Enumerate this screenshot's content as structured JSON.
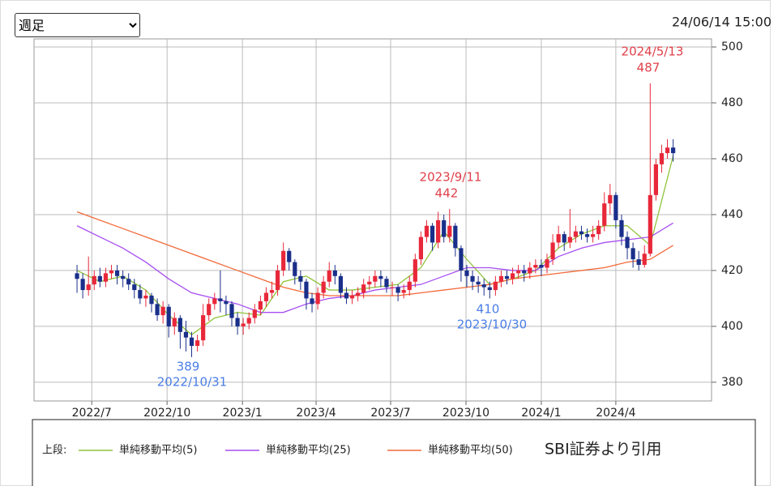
{
  "chart_data": {
    "type": "candlestick",
    "period": "週足",
    "timestamp": "24/06/14 15:00",
    "x": [
      0,
      1,
      2,
      3,
      4,
      5,
      6,
      7,
      8,
      9,
      10,
      11,
      12,
      13,
      14,
      15,
      16,
      17,
      18,
      19,
      20,
      21,
      22,
      23,
      24,
      25,
      26,
      27,
      28,
      29,
      30,
      31,
      32,
      33,
      34,
      35,
      36,
      37,
      38,
      39,
      40,
      41,
      42,
      43,
      44,
      45,
      46,
      47,
      48,
      49,
      50,
      51,
      52,
      53,
      54,
      55,
      56,
      57,
      58,
      59,
      60,
      61,
      62,
      63,
      64,
      65,
      66,
      67,
      68,
      69,
      70,
      71,
      72,
      73,
      74,
      75,
      76,
      77,
      78,
      79,
      80,
      81,
      82,
      83,
      84,
      85,
      86,
      87,
      88,
      89,
      90,
      91,
      92,
      93,
      94,
      95,
      96,
      97,
      98,
      99,
      100,
      101,
      102,
      103,
      104
    ],
    "open": [
      419,
      417,
      413,
      415,
      418,
      416,
      419,
      420,
      418,
      417,
      415,
      413,
      410,
      411,
      408,
      404,
      407,
      400,
      403,
      398,
      396,
      393,
      395,
      404,
      408,
      410,
      409,
      408,
      403,
      400,
      401,
      403,
      406,
      409,
      412,
      413,
      420,
      427,
      423,
      418,
      416,
      410,
      408,
      412,
      416,
      420,
      418,
      412,
      410,
      411,
      412,
      415,
      416,
      418,
      417,
      414,
      414,
      412,
      413,
      416,
      424,
      432,
      436,
      430,
      438,
      432,
      436,
      428,
      420,
      418,
      416,
      415,
      414,
      413,
      416,
      418,
      417,
      419,
      420,
      419,
      421,
      422,
      421,
      424,
      430,
      433,
      430,
      432,
      434,
      433,
      432,
      433,
      436,
      444,
      447,
      438,
      432,
      428,
      424,
      422,
      426,
      447,
      458,
      462,
      464
    ],
    "high": [
      422,
      419,
      425,
      420,
      421,
      421,
      422,
      422,
      420,
      419,
      417,
      415,
      413,
      412,
      410,
      409,
      408,
      405,
      404,
      402,
      398,
      397,
      408,
      410,
      412,
      420,
      411,
      409,
      405,
      403,
      405,
      408,
      411,
      414,
      416,
      422,
      430,
      428,
      424,
      420,
      417,
      412,
      414,
      418,
      423,
      422,
      419,
      414,
      413,
      414,
      417,
      418,
      420,
      420,
      418,
      416,
      415,
      415,
      418,
      426,
      434,
      438,
      437,
      441,
      440,
      442,
      437,
      429,
      422,
      420,
      418,
      417,
      416,
      418,
      420,
      420,
      421,
      422,
      422,
      423,
      424,
      424,
      426,
      433,
      436,
      434,
      442,
      436,
      436,
      435,
      436,
      438,
      448,
      451,
      448,
      440,
      434,
      430,
      427,
      429,
      487,
      460,
      465,
      467,
      467
    ],
    "low": [
      412,
      410,
      411,
      413,
      414,
      414,
      417,
      415,
      414,
      413,
      410,
      408,
      407,
      405,
      402,
      401,
      396,
      397,
      392,
      391,
      389,
      391,
      393,
      402,
      406,
      405,
      404,
      400,
      397,
      397,
      399,
      401,
      404,
      407,
      410,
      411,
      418,
      420,
      415,
      413,
      406,
      405,
      406,
      410,
      414,
      415,
      410,
      408,
      408,
      409,
      410,
      413,
      414,
      414,
      412,
      411,
      409,
      410,
      411,
      414,
      422,
      430,
      427,
      428,
      430,
      430,
      425,
      416,
      414,
      413,
      412,
      411,
      410,
      411,
      414,
      415,
      415,
      417,
      416,
      417,
      419,
      418,
      419,
      422,
      428,
      427,
      428,
      430,
      431,
      430,
      430,
      431,
      434,
      440,
      435,
      429,
      424,
      421,
      420,
      421,
      425,
      445,
      455,
      460,
      459
    ],
    "close": [
      417,
      413,
      415,
      418,
      416,
      419,
      420,
      418,
      417,
      415,
      413,
      410,
      411,
      408,
      404,
      407,
      400,
      403,
      398,
      396,
      393,
      395,
      404,
      408,
      410,
      409,
      408,
      403,
      400,
      401,
      403,
      406,
      409,
      412,
      413,
      420,
      427,
      423,
      418,
      416,
      410,
      408,
      412,
      416,
      420,
      418,
      412,
      410,
      411,
      412,
      415,
      416,
      418,
      417,
      414,
      414,
      412,
      413,
      416,
      424,
      432,
      436,
      430,
      438,
      432,
      436,
      428,
      420,
      418,
      416,
      415,
      414,
      413,
      416,
      418,
      417,
      419,
      420,
      419,
      421,
      422,
      421,
      424,
      430,
      433,
      430,
      432,
      434,
      433,
      432,
      433,
      436,
      444,
      447,
      438,
      432,
      428,
      424,
      422,
      426,
      447,
      458,
      462,
      464,
      462
    ],
    "up_color": "#e8283a",
    "down_color": "#1a2f8a",
    "series": [
      {
        "name": "単純移動平均(5)",
        "color": "#8fc43a",
        "x": [
          0,
          4,
          8,
          12,
          16,
          20,
          24,
          28,
          32,
          36,
          40,
          44,
          48,
          52,
          56,
          60,
          64,
          68,
          72,
          76,
          80,
          84,
          88,
          92,
          96,
          100,
          104
        ],
        "values": [
          420,
          416,
          418,
          413,
          404,
          397,
          403,
          405,
          404,
          416,
          418,
          413,
          413,
          414,
          415,
          421,
          434,
          424,
          415,
          417,
          420,
          428,
          433,
          436,
          436,
          429,
          461
        ]
      },
      {
        "name": "単純移動平均(25)",
        "color": "#a64ef2",
        "x": [
          0,
          4,
          8,
          12,
          16,
          20,
          24,
          28,
          32,
          36,
          40,
          44,
          48,
          52,
          56,
          60,
          64,
          68,
          72,
          76,
          80,
          84,
          88,
          92,
          96,
          100,
          104
        ],
        "values": [
          436,
          432,
          428,
          423,
          417,
          412,
          410,
          408,
          405,
          405,
          408,
          410,
          411,
          413,
          414,
          415,
          418,
          421,
          421,
          420,
          420,
          425,
          428,
          430,
          431,
          432,
          437
        ]
      },
      {
        "name": "単純移動平均(50)",
        "color": "#f26a3a",
        "x": [
          0,
          4,
          8,
          12,
          16,
          20,
          24,
          28,
          32,
          36,
          40,
          44,
          48,
          52,
          56,
          60,
          64,
          68,
          72,
          76,
          80,
          84,
          88,
          92,
          96,
          100,
          104
        ],
        "values": [
          441,
          438,
          435,
          432,
          429,
          426,
          423,
          420,
          417,
          414,
          412,
          411,
          411,
          411,
          411,
          412,
          413,
          414,
          415,
          417,
          418,
          419,
          420,
          421,
          423,
          424,
          429
        ]
      }
    ],
    "legend_prefix": "上段:",
    "source": "SBI証券より引用",
    "annotations": [
      {
        "date": "2024/5/13",
        "value": 487
      },
      {
        "date": "2023/9/11",
        "value": 442
      },
      {
        "date": "2022/10/31",
        "value": 389
      },
      {
        "date": "2023/10/30",
        "value": 410
      }
    ],
    "xlim": [
      -7.5,
      110.7
    ],
    "xticks": [
      {
        "value": 2.57,
        "label": "2022/7"
      },
      {
        "value": 15.71,
        "label": "2022/10"
      },
      {
        "value": 28.86,
        "label": "2023/1"
      },
      {
        "value": 41.71,
        "label": "2023/4"
      },
      {
        "value": 54.71,
        "label": "2023/7"
      },
      {
        "value": 67.86,
        "label": "2023/10"
      },
      {
        "value": 81,
        "label": "2024/1"
      },
      {
        "value": 94,
        "label": "2024/4"
      }
    ],
    "ylim": [
      373.3,
      502.9
    ],
    "yticks": [
      380,
      400,
      420,
      440,
      460,
      480,
      500
    ],
    "grid": true
  }
}
